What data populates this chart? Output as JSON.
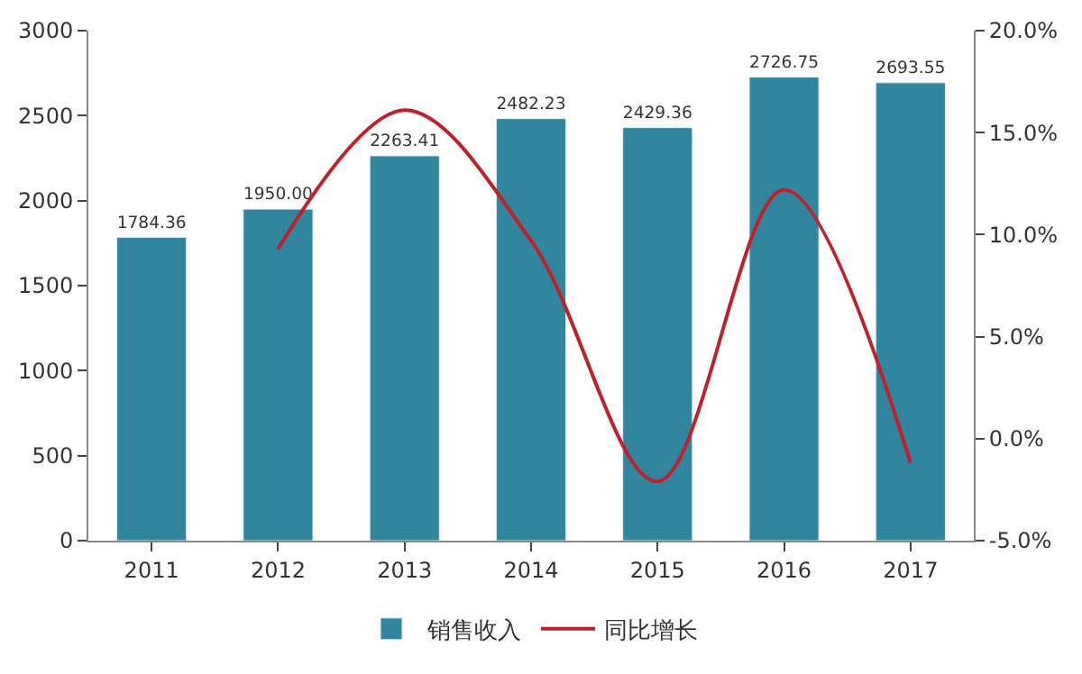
{
  "chart_data": {
    "type": "bar",
    "categories": [
      "2011",
      "2012",
      "2013",
      "2014",
      "2015",
      "2016",
      "2017"
    ],
    "series": [
      {
        "name": "销售收入",
        "color": "#31859c",
        "values": [
          1784.36,
          1950.0,
          2263.41,
          2482.23,
          2429.36,
          2726.75,
          2693.55
        ],
        "value_labels": [
          "1784.36",
          "1950.00",
          "2263.41",
          "2482.23",
          "2429.36",
          "2726.75",
          "2693.55"
        ]
      },
      {
        "name": "同比增长",
        "type": "line",
        "axis": "y2",
        "color": "#c0202a",
        "values": [
          null,
          9.3,
          16.1,
          9.7,
          -2.1,
          12.2,
          -1.2
        ]
      }
    ],
    "ylim": [
      0,
      3000
    ],
    "yticks": [
      0,
      500,
      1000,
      1500,
      2000,
      2500,
      3000
    ],
    "y2lim": [
      -5,
      20
    ],
    "y2ticks": [
      {
        "value": -5,
        "label": "-5.0%"
      },
      {
        "value": 0,
        "label": "0.0%"
      },
      {
        "value": 5,
        "label": "5.0%"
      },
      {
        "value": 10,
        "label": "10.0%"
      },
      {
        "value": 15,
        "label": "15.0%"
      },
      {
        "value": 20,
        "label": "20.0%"
      }
    ],
    "legend": "bottom",
    "marker": "none",
    "line_style": "solid"
  }
}
